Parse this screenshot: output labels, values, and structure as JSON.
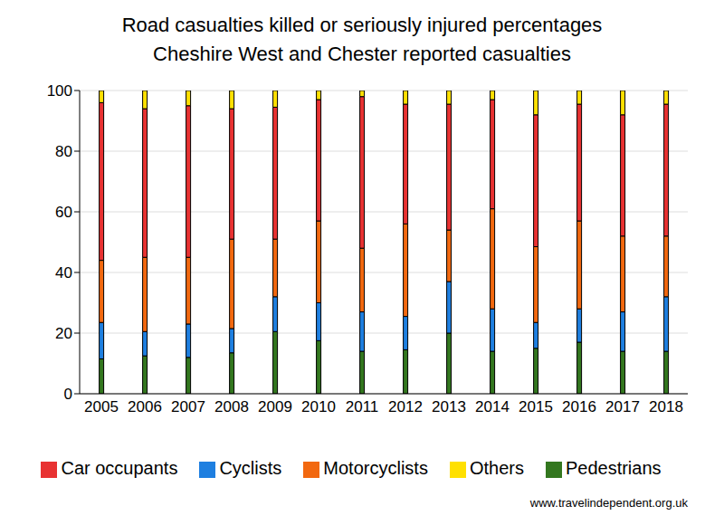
{
  "chart_data": {
    "type": "bar",
    "title": "Road casualties killed or seriously injured percentages",
    "subtitle": "Cheshire West and Chester reported casualties",
    "source": "www.travelindependent.org.uk",
    "categories": [
      "2005",
      "2006",
      "2007",
      "2008",
      "2009",
      "2010",
      "2011",
      "2012",
      "2013",
      "2014",
      "2015",
      "2016",
      "2017",
      "2018"
    ],
    "series": [
      {
        "name": "Pedestrians",
        "color": "#33771f",
        "values": [
          11.5,
          12.5,
          12,
          13.5,
          20.5,
          17.5,
          14,
          14.5,
          20,
          14,
          15,
          17,
          14,
          14
        ]
      },
      {
        "name": "Cyclists",
        "color": "#1e7fe0",
        "values": [
          12,
          8,
          11,
          8,
          11.5,
          12.5,
          13,
          11,
          17,
          14,
          8.5,
          11,
          13,
          18
        ]
      },
      {
        "name": "Motorcyclists",
        "color": "#f2680f",
        "values": [
          20.5,
          24.5,
          22,
          29.5,
          19,
          27,
          21,
          30.5,
          17,
          33,
          25,
          29,
          25,
          20
        ]
      },
      {
        "name": "Car occupants",
        "color": "#e83232",
        "values": [
          52,
          49,
          50,
          43,
          43.5,
          40,
          50,
          39.5,
          41.5,
          36,
          43.5,
          38.5,
          40,
          43.5
        ]
      },
      {
        "name": "Others",
        "color": "#ffe000",
        "values": [
          4,
          6,
          5,
          6,
          5.5,
          3,
          2,
          4.5,
          4.5,
          3,
          8,
          4.5,
          8,
          4.5
        ]
      }
    ],
    "ylim": [
      0,
      100
    ],
    "yticks": [
      0,
      20,
      40,
      60,
      80,
      100
    ],
    "grid": true,
    "stacked": true,
    "legend": "bottom"
  }
}
